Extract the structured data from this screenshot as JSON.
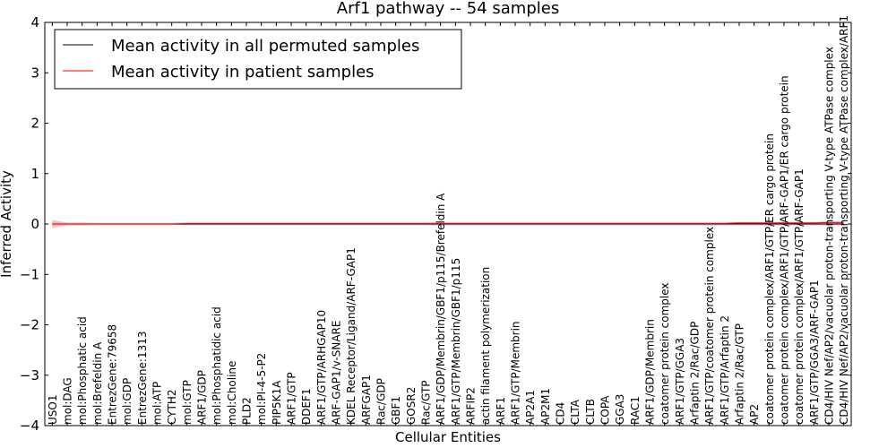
{
  "chart_data": {
    "type": "line",
    "title": "Arf1 pathway -- 54 samples",
    "xlabel": "Cellular Entities",
    "ylabel": "Inferred Activity",
    "ylim": [
      -4,
      4
    ],
    "yticks": [
      -4,
      -3,
      -2,
      -1,
      0,
      1,
      2,
      3,
      4
    ],
    "legend_position": "upper-left",
    "categories": [
      "USO1",
      "mol:DAG",
      "mol:Phosphatic acid",
      "mol:Brefeldin A",
      "EntrezGene:79658",
      "mol:GDP",
      "EntrezGene:1313",
      "mol:ATP",
      "CYTH2",
      "mol:GTP",
      "ARF1/GDP",
      "mol:Phosphatidic acid",
      "mol:Choline",
      "PLD2",
      "mol:PI-4-5-P2",
      "PIP5K1A",
      "ARF1/GTP",
      "DDEF1",
      "ARF1/GTP/ARHGAP10",
      "ARF-GAP1/v-SNARE",
      "KDEL Receptor/Ligand/ARF-GAP1",
      "ARFGAP1",
      "Rac/GDP",
      "GBF1",
      "GOSR2",
      "Rac/GTP",
      "ARF1/GDP/Membrin/GBF1/p115/Brefeldin A",
      "ARF1/GTP/Membrin/GBF1/p115",
      "ARFIP2",
      "actin filament polymerization",
      "ARF1",
      "ARF1/GTP/Membrin",
      "AP2A1",
      "AP2M1",
      "CD4",
      "CLTA",
      "CLTB",
      "COPA",
      "GGA3",
      "RAC1",
      "ARF1/GDP/Membrin",
      "coatomer protein complex",
      "ARF1/GTP/GGA3",
      "Arfaptin 2/Rac/GDP",
      "ARF1/GTP/coatomer protein complex",
      "ARF1/GTP/Arfaptin 2",
      "Arfaptin 2/Rac/GTP",
      "AP2",
      "coatomer protein complex/ARF1/GTP/ER cargo protein",
      "coatomer protein complex/ARF1/GTP/ARF-GAP1/ER cargo protein",
      "coatomer protein complex/ARF1/GTP/ARF-GAP1",
      "ARF1/GTP/GGA3/ARF-GAP1",
      "CD4/HIV Nef/AP2/vacuolar proton-transporting V-type ATPase complex",
      "CD4/HIV Nef/AP2/vacuolar proton-transporting V-type ATPase complex/ARF1"
    ],
    "series": [
      {
        "name": "Mean activity in all permuted samples",
        "color": "#000000",
        "values": [
          0.0,
          0.0,
          0.0,
          0.0,
          0.0,
          0.0,
          0.0,
          0.0,
          0.0,
          0.0,
          0.0,
          0.0,
          0.0,
          0.0,
          0.0,
          0.0,
          0.0,
          0.0,
          0.0,
          0.0,
          0.0,
          0.0,
          0.0,
          0.0,
          0.0,
          0.0,
          0.0,
          0.0,
          0.0,
          0.0,
          0.0,
          0.0,
          0.0,
          0.0,
          0.0,
          0.0,
          0.0,
          0.0,
          0.0,
          0.0,
          0.0,
          0.0,
          0.0,
          0.0,
          0.0,
          0.0,
          0.0,
          0.0,
          0.0,
          0.0,
          0.0,
          0.0,
          0.0,
          0.0
        ],
        "band": [
          0.03,
          0.02,
          0.02,
          0.02,
          0.02,
          0.02,
          0.02,
          0.02,
          0.02,
          0.03,
          0.03,
          0.03,
          0.03,
          0.03,
          0.03,
          0.03,
          0.03,
          0.03,
          0.03,
          0.03,
          0.03,
          0.03,
          0.03,
          0.03,
          0.03,
          0.03,
          0.04,
          0.04,
          0.04,
          0.04,
          0.04,
          0.04,
          0.04,
          0.04,
          0.04,
          0.04,
          0.04,
          0.04,
          0.04,
          0.04,
          0.04,
          0.04,
          0.04,
          0.04,
          0.04,
          0.04,
          0.04,
          0.04,
          0.04,
          0.04,
          0.04,
          0.04,
          0.04,
          0.04
        ]
      },
      {
        "name": "Mean activity in patient samples",
        "color": "#ff0000",
        "values": [
          0.0,
          0.0,
          0.0,
          0.0,
          0.0,
          0.0,
          0.0,
          0.0,
          0.0,
          0.01,
          0.01,
          0.01,
          0.01,
          0.01,
          0.01,
          0.01,
          0.01,
          0.01,
          0.01,
          0.01,
          0.01,
          0.01,
          0.01,
          0.01,
          0.01,
          0.01,
          0.01,
          0.01,
          0.01,
          0.01,
          0.01,
          0.01,
          0.01,
          0.01,
          0.01,
          0.01,
          0.01,
          0.01,
          0.01,
          0.01,
          0.01,
          0.01,
          0.01,
          0.01,
          0.01,
          0.01,
          0.02,
          0.02,
          0.02,
          0.02,
          0.02,
          0.02,
          0.03,
          0.03
        ],
        "band": [
          0.08,
          0.03,
          0.03,
          0.02,
          0.02,
          0.02,
          0.02,
          0.02,
          0.02,
          0.02,
          0.02,
          0.02,
          0.02,
          0.02,
          0.02,
          0.02,
          0.02,
          0.02,
          0.02,
          0.02,
          0.02,
          0.02,
          0.02,
          0.02,
          0.02,
          0.02,
          0.02,
          0.02,
          0.02,
          0.02,
          0.02,
          0.02,
          0.02,
          0.02,
          0.02,
          0.02,
          0.02,
          0.02,
          0.02,
          0.02,
          0.02,
          0.02,
          0.02,
          0.02,
          0.02,
          0.02,
          0.02,
          0.02,
          0.02,
          0.02,
          0.02,
          0.02,
          0.03,
          0.03
        ]
      }
    ]
  }
}
